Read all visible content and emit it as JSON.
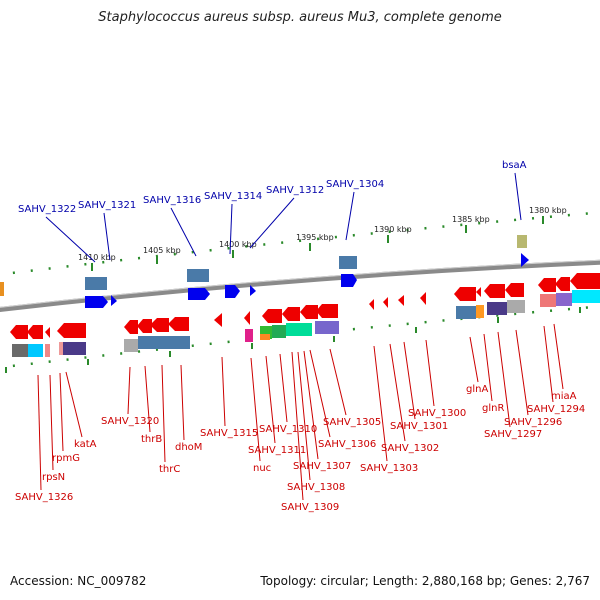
{
  "title": "Staphylococcus aureus subsp. aureus Mu3, complete genome",
  "footer": {
    "accession": "Accession: NC_009782",
    "summary": "Topology: circular; Length: 2,880,168 bp; Genes: 2,767"
  },
  "colors": {
    "forward": "#0000ee",
    "reverse": "#ee0000",
    "label_top": "#0000aa",
    "label_bottom": "#cc0000",
    "ticks": "#2a8a2a"
  },
  "kbp_ticks": [
    "1410 kbp",
    "1405 kbp",
    "1400 kbp",
    "1395 kbp",
    "1390 kbp",
    "1385 kbp",
    "1380 kbp"
  ],
  "top_labels": [
    "SAHV_1322",
    "SAHV_1321",
    "SAHV_1316",
    "SAHV_1314",
    "SAHV_1312",
    "SAHV_1304",
    "bsaA"
  ],
  "bottom_labels": [
    "SAHV_1326",
    "rpsN",
    "rpmG",
    "katA",
    "SAHV_1320",
    "thrB",
    "thrC",
    "dhoM",
    "SAHV_1315",
    "nuc",
    "SAHV_1311",
    "SAHV_1310",
    "SAHV_1309",
    "SAHV_1308",
    "SAHV_1307",
    "SAHV_1306",
    "SAHV_1305",
    "SAHV_1303",
    "SAHV_1302",
    "SAHV_1301",
    "SAHV_1300",
    "glnA",
    "glnR",
    "SAHV_1297",
    "SAHV_1296",
    "SAHV_1294",
    "miaA"
  ]
}
